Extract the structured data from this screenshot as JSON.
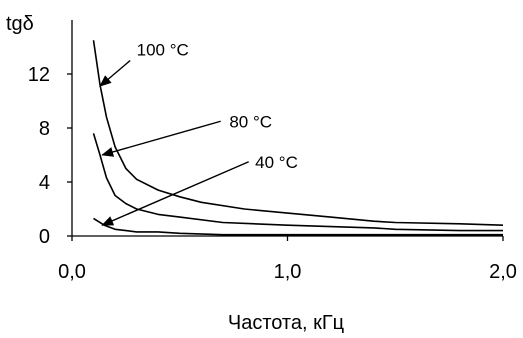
{
  "chart_data": {
    "type": "line",
    "title": "",
    "xlabel": "Частота, кГц",
    "ylabel": "tgδ",
    "xlim": [
      0,
      2
    ],
    "ylim": [
      0,
      16
    ],
    "x_ticks": [
      "0,0",
      "1,0",
      "2,0"
    ],
    "x_tick_values": [
      0,
      1,
      2
    ],
    "y_ticks": [
      "0",
      "4",
      "8",
      "12"
    ],
    "y_tick_values": [
      0,
      4,
      8,
      12
    ],
    "grid": false,
    "legend": "none",
    "line_color": "#000000",
    "series": [
      {
        "x": [
          0.1,
          0.13,
          0.16,
          0.2,
          0.25,
          0.3,
          0.4,
          0.5,
          0.6,
          0.8,
          1.0,
          1.2,
          1.4,
          1.5,
          1.8,
          2.0
        ],
        "y": [
          14.5,
          11.2,
          8.8,
          6.6,
          5.0,
          4.2,
          3.4,
          2.9,
          2.5,
          2.0,
          1.7,
          1.4,
          1.1,
          1.0,
          0.9,
          0.8
        ]
      },
      {
        "x": [
          0.1,
          0.13,
          0.16,
          0.2,
          0.25,
          0.3,
          0.4,
          0.5,
          0.7,
          1.0,
          1.4,
          1.5,
          1.8,
          2.0
        ],
        "y": [
          7.6,
          6.0,
          4.3,
          3.0,
          2.4,
          2.0,
          1.6,
          1.4,
          1.0,
          0.8,
          0.6,
          0.5,
          0.4,
          0.4
        ]
      },
      {
        "x": [
          0.1,
          0.12,
          0.15,
          0.2,
          0.25,
          0.3,
          0.4,
          0.5,
          0.7,
          1.0,
          1.5,
          2.0
        ],
        "y": [
          1.3,
          1.1,
          0.8,
          0.5,
          0.4,
          0.3,
          0.3,
          0.2,
          0.1,
          0.1,
          0.1,
          0.1
        ]
      }
    ],
    "annotations": [
      {
        "text": "100 °C",
        "text_x": 0.3,
        "text_y": 13.8,
        "arrow_from": [
          0.27,
          13.0
        ],
        "arrow_to": [
          0.13,
          11.1
        ]
      },
      {
        "text": "80 °C",
        "text_x": 0.73,
        "text_y": 8.5,
        "arrow_from": [
          0.69,
          8.5
        ],
        "arrow_to": [
          0.14,
          6.0
        ]
      },
      {
        "text": "40 °C",
        "text_x": 0.85,
        "text_y": 5.5,
        "arrow_from": [
          0.82,
          5.5
        ],
        "arrow_to": [
          0.14,
          0.8
        ]
      }
    ]
  }
}
